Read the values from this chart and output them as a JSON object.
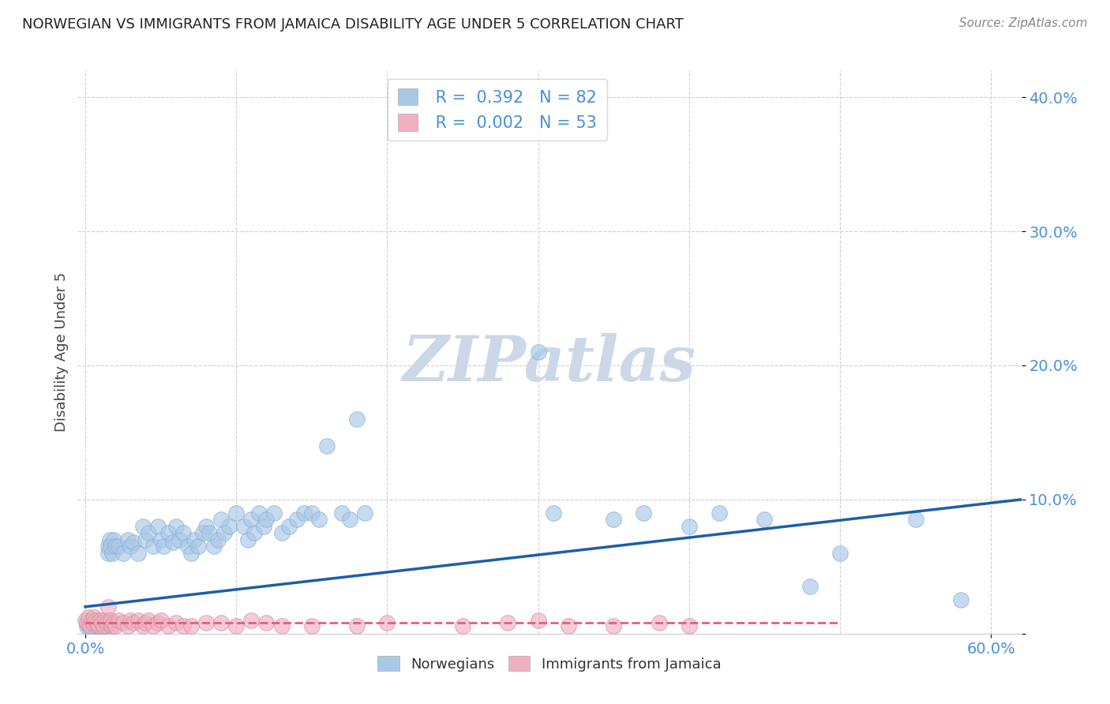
{
  "title": "NORWEGIAN VS IMMIGRANTS FROM JAMAICA DISABILITY AGE UNDER 5 CORRELATION CHART",
  "source": "Source: ZipAtlas.com",
  "ylabel": "Disability Age Under 5",
  "background_color": "#ffffff",
  "grid_color": "#d0d0d0",
  "norwegian_color": "#a8c8e8",
  "norwegian_line_color": "#1a5fa8",
  "jamaica_color": "#f0b0c0",
  "jamaica_line_color": "#e06080",
  "legend_blue_color": "#4a90d9",
  "r_norwegian": 0.392,
  "n_norwegian": 82,
  "r_jamaica": 0.002,
  "n_jamaica": 53,
  "norwegians_x": [
    0.001,
    0.002,
    0.003,
    0.004,
    0.005,
    0.006,
    0.007,
    0.008,
    0.009,
    0.01,
    0.011,
    0.012,
    0.013,
    0.014,
    0.015,
    0.015,
    0.016,
    0.017,
    0.018,
    0.019,
    0.02,
    0.022,
    0.025,
    0.028,
    0.03,
    0.032,
    0.035,
    0.038,
    0.04,
    0.042,
    0.045,
    0.048,
    0.05,
    0.052,
    0.055,
    0.058,
    0.06,
    0.062,
    0.065,
    0.068,
    0.07,
    0.072,
    0.075,
    0.078,
    0.08,
    0.082,
    0.085,
    0.088,
    0.09,
    0.092,
    0.095,
    0.1,
    0.105,
    0.108,
    0.11,
    0.112,
    0.115,
    0.118,
    0.12,
    0.125,
    0.13,
    0.135,
    0.14,
    0.145,
    0.15,
    0.155,
    0.16,
    0.17,
    0.175,
    0.18,
    0.185,
    0.3,
    0.31,
    0.35,
    0.37,
    0.4,
    0.42,
    0.45,
    0.48,
    0.5,
    0.55,
    0.58
  ],
  "norwegians_y": [
    0.005,
    0.006,
    0.005,
    0.007,
    0.006,
    0.005,
    0.006,
    0.007,
    0.005,
    0.006,
    0.005,
    0.006,
    0.007,
    0.006,
    0.06,
    0.065,
    0.07,
    0.065,
    0.06,
    0.07,
    0.065,
    0.065,
    0.06,
    0.07,
    0.065,
    0.068,
    0.06,
    0.08,
    0.07,
    0.075,
    0.065,
    0.08,
    0.07,
    0.065,
    0.075,
    0.068,
    0.08,
    0.07,
    0.075,
    0.065,
    0.06,
    0.07,
    0.065,
    0.075,
    0.08,
    0.075,
    0.065,
    0.07,
    0.085,
    0.075,
    0.08,
    0.09,
    0.08,
    0.07,
    0.085,
    0.075,
    0.09,
    0.08,
    0.085,
    0.09,
    0.075,
    0.08,
    0.085,
    0.09,
    0.09,
    0.085,
    0.14,
    0.09,
    0.085,
    0.16,
    0.09,
    0.21,
    0.09,
    0.085,
    0.09,
    0.08,
    0.09,
    0.085,
    0.035,
    0.06,
    0.085,
    0.025
  ],
  "jamaica_x": [
    0.0,
    0.001,
    0.002,
    0.003,
    0.004,
    0.005,
    0.006,
    0.007,
    0.008,
    0.009,
    0.01,
    0.011,
    0.012,
    0.013,
    0.014,
    0.015,
    0.016,
    0.017,
    0.018,
    0.019,
    0.02,
    0.022,
    0.025,
    0.028,
    0.03,
    0.032,
    0.035,
    0.038,
    0.04,
    0.042,
    0.045,
    0.048,
    0.05,
    0.055,
    0.06,
    0.065,
    0.07,
    0.08,
    0.09,
    0.1,
    0.11,
    0.12,
    0.13,
    0.15,
    0.18,
    0.2,
    0.25,
    0.28,
    0.3,
    0.32,
    0.35,
    0.38,
    0.4
  ],
  "jamaica_y": [
    0.01,
    0.008,
    0.012,
    0.006,
    0.01,
    0.008,
    0.012,
    0.01,
    0.008,
    0.006,
    0.01,
    0.008,
    0.006,
    0.01,
    0.008,
    0.02,
    0.008,
    0.01,
    0.006,
    0.008,
    0.006,
    0.01,
    0.008,
    0.006,
    0.01,
    0.008,
    0.01,
    0.006,
    0.008,
    0.01,
    0.006,
    0.008,
    0.01,
    0.006,
    0.008,
    0.006,
    0.006,
    0.008,
    0.008,
    0.006,
    0.01,
    0.008,
    0.006,
    0.006,
    0.006,
    0.008,
    0.006,
    0.008,
    0.01,
    0.006,
    0.006,
    0.008,
    0.006
  ],
  "ylim": [
    0.0,
    0.42
  ],
  "xlim": [
    -0.005,
    0.62
  ],
  "yticks": [
    0.0,
    0.1,
    0.2,
    0.3,
    0.4
  ],
  "ytick_labels": [
    "",
    "10.0%",
    "20.0%",
    "30.0%",
    "40.0%"
  ],
  "xticks": [
    0.0,
    0.6
  ],
  "xtick_labels": [
    "0.0%",
    "60.0%"
  ],
  "watermark": "ZIPatlas",
  "watermark_color": "#ccd8e8"
}
